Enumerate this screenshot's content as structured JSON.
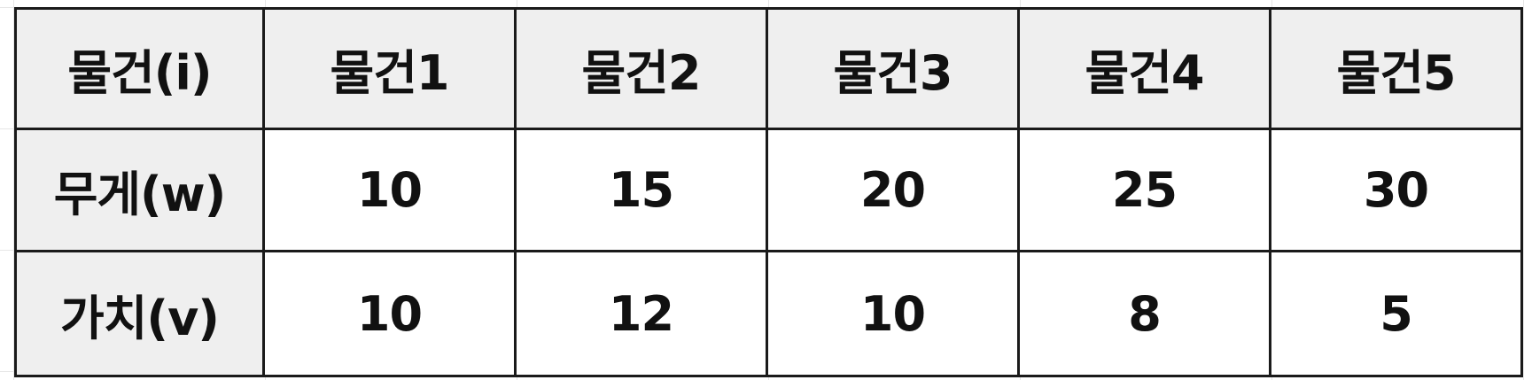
{
  "table": {
    "header": {
      "label": "물건(i)",
      "items": [
        "물건1",
        "물건2",
        "물건3",
        "물건4",
        "물건5"
      ]
    },
    "rows": [
      {
        "label": "무게(w)",
        "values": [
          "10",
          "15",
          "20",
          "25",
          "30"
        ]
      },
      {
        "label": "가치(v)",
        "values": [
          "10",
          "12",
          "10",
          "8",
          "5"
        ]
      }
    ]
  },
  "colors": {
    "header_fill": "#efefef",
    "border": "#1a1a1a",
    "text": "#111111"
  }
}
